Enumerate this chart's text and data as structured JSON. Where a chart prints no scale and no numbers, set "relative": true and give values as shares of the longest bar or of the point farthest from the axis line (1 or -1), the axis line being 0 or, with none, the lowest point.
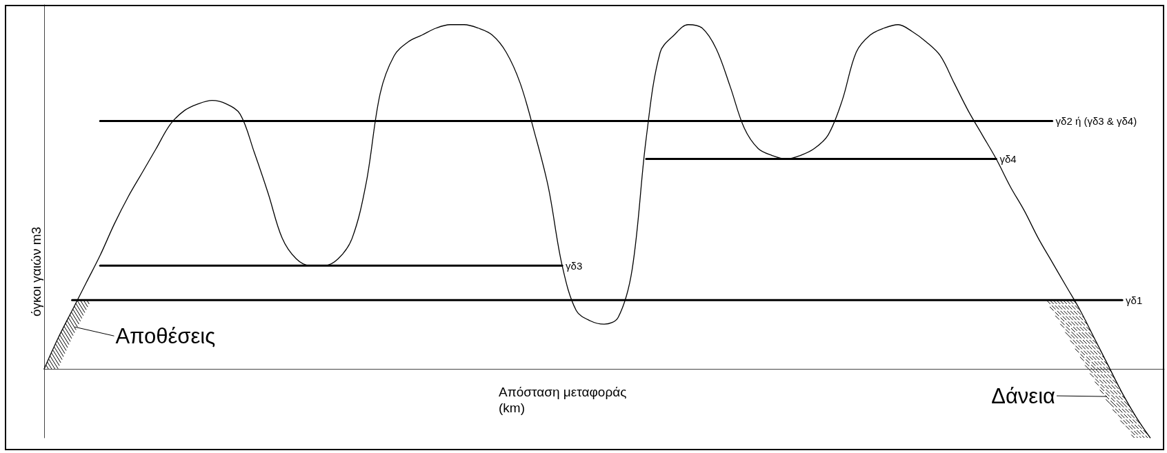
{
  "chart_data": {
    "type": "line",
    "relative": true,
    "xlabel": "Απόσταση μεταφοράς (km)",
    "ylabel": "όγκοι γαιών m3",
    "categories": [
      null,
      null,
      null,
      null,
      null,
      null,
      null,
      null,
      null,
      null,
      null,
      null,
      null,
      null,
      null,
      null,
      null,
      null,
      null,
      null,
      null,
      null,
      null,
      null,
      null,
      null,
      null,
      null,
      null,
      null,
      null,
      null,
      null,
      null,
      null,
      null,
      null,
      null,
      null,
      null,
      null,
      null,
      null,
      null,
      null,
      null,
      null,
      null,
      null,
      null,
      null,
      null,
      null,
      null,
      null,
      null,
      null,
      null,
      null,
      null,
      null,
      null,
      null,
      null,
      null,
      null,
      null,
      null,
      null,
      null,
      null,
      null,
      null,
      null,
      null,
      null,
      null,
      null,
      null,
      null,
      null
    ],
    "series": [
      {
        "color": "#000000",
        "values": [
          0,
          0.09,
          0.17,
          0.25,
          0.33,
          0.42,
          0.5,
          0.57,
          0.64,
          0.71,
          0.75,
          0.77,
          0.78,
          0.77,
          0.74,
          0.63,
          0.51,
          0.38,
          0.32,
          0.3,
          0.3,
          0.32,
          0.38,
          0.54,
          0.8,
          0.91,
          0.95,
          0.97,
          0.99,
          1,
          1,
          0.99,
          0.97,
          0.92,
          0.83,
          0.69,
          0.53,
          0.3,
          0.17,
          0.14,
          0.13,
          0.15,
          0.29,
          0.67,
          0.92,
          0.97,
          1,
          0.99,
          0.93,
          0.82,
          0.7,
          0.64,
          0.62,
          0.61,
          0.62,
          0.64,
          0.68,
          0.78,
          0.92,
          0.97,
          0.99,
          1,
          0.98,
          0.95,
          0.91,
          0.83,
          0.75,
          0.68,
          0.61,
          0.53,
          0.46,
          0.38,
          0.31,
          0.24,
          0.17,
          0.09,
          0.01,
          -0.07,
          -0.14,
          -0.2,
          null
        ]
      },
      {
        "name": "γδ2 ή (γδ3 & γδ4)",
        "color": "#000000",
        "values": [
          null,
          null,
          null,
          null,
          0.72,
          0.72,
          0.72,
          0.72,
          0.72,
          0.72,
          0.72,
          0.72,
          0.72,
          0.72,
          0.72,
          0.72,
          0.72,
          0.72,
          0.72,
          0.72,
          0.72,
          0.72,
          0.72,
          0.72,
          0.72,
          0.72,
          0.72,
          0.72,
          0.72,
          0.72,
          0.72,
          0.72,
          0.72,
          0.72,
          0.72,
          0.72,
          0.72,
          0.72,
          0.72,
          0.72,
          0.72,
          0.72,
          0.72,
          0.72,
          0.72,
          0.72,
          0.72,
          0.72,
          0.72,
          0.72,
          0.72,
          0.72,
          0.72,
          0.72,
          0.72,
          0.72,
          0.72,
          0.72,
          0.72,
          0.72,
          0.72,
          0.72,
          0.72,
          0.72,
          0.72,
          0.72,
          0.72,
          0.72,
          0.72,
          0.72,
          0.72,
          0.72,
          0.72,
          null,
          null,
          null,
          null,
          null,
          null,
          null,
          null
        ]
      },
      {
        "name": "γδ4",
        "color": "#000000",
        "values": [
          null,
          null,
          null,
          null,
          null,
          null,
          null,
          null,
          null,
          null,
          null,
          null,
          null,
          null,
          null,
          null,
          null,
          null,
          null,
          null,
          null,
          null,
          null,
          null,
          null,
          null,
          null,
          null,
          null,
          null,
          null,
          null,
          null,
          null,
          null,
          null,
          null,
          null,
          null,
          null,
          null,
          null,
          null,
          0.61,
          0.61,
          0.61,
          0.61,
          0.61,
          0.61,
          0.61,
          0.61,
          0.61,
          0.61,
          0.61,
          0.61,
          0.61,
          0.61,
          0.61,
          0.61,
          0.61,
          0.61,
          0.61,
          0.61,
          0.61,
          0.61,
          0.61,
          0.61,
          0.61,
          0.61,
          null,
          null,
          null,
          null,
          null,
          null,
          null,
          null,
          null,
          null,
          null,
          null
        ]
      },
      {
        "name": "γδ3",
        "color": "#000000",
        "values": [
          null,
          null,
          null,
          null,
          0.3,
          0.3,
          0.3,
          0.3,
          0.3,
          0.3,
          0.3,
          0.3,
          0.3,
          0.3,
          0.3,
          0.3,
          0.3,
          0.3,
          0.3,
          0.3,
          0.3,
          0.3,
          0.3,
          0.3,
          0.3,
          0.3,
          0.3,
          0.3,
          0.3,
          0.3,
          0.3,
          0.3,
          0.3,
          0.3,
          0.3,
          0.3,
          0.3,
          0.3,
          null,
          null,
          null,
          null,
          null,
          null,
          null,
          null,
          null,
          null,
          null,
          null,
          null,
          null,
          null,
          null,
          null,
          null,
          null,
          null,
          null,
          null,
          null,
          null,
          null,
          null,
          null,
          null,
          null,
          null,
          null,
          null,
          null,
          null,
          null,
          null,
          null,
          null,
          null,
          null,
          null,
          null,
          null
        ]
      },
      {
        "name": "γδ1",
        "color": "#000000",
        "values": [
          null,
          null,
          0.2,
          0.2,
          0.2,
          0.2,
          0.2,
          0.2,
          0.2,
          0.2,
          0.2,
          0.2,
          0.2,
          0.2,
          0.2,
          0.2,
          0.2,
          0.2,
          0.2,
          0.2,
          0.2,
          0.2,
          0.2,
          0.2,
          0.2,
          0.2,
          0.2,
          0.2,
          0.2,
          0.2,
          0.2,
          0.2,
          0.2,
          0.2,
          0.2,
          0.2,
          0.2,
          0.2,
          0.2,
          0.2,
          0.2,
          0.2,
          0.2,
          0.2,
          0.2,
          0.2,
          0.2,
          0.2,
          0.2,
          0.2,
          0.2,
          0.2,
          0.2,
          0.2,
          0.2,
          0.2,
          0.2,
          0.2,
          0.2,
          0.2,
          0.2,
          0.2,
          0.2,
          0.2,
          0.2,
          0.2,
          0.2,
          0.2,
          0.2,
          0.2,
          0.2,
          0.2,
          0.2,
          0.2,
          0.2,
          0.2,
          0.2,
          0.2,
          null,
          null,
          null
        ]
      }
    ],
    "annotations": [
      "Αποθέσεις",
      "Δάνεια"
    ],
    "grid": false,
    "marker": "none",
    "line_style": "solid"
  }
}
